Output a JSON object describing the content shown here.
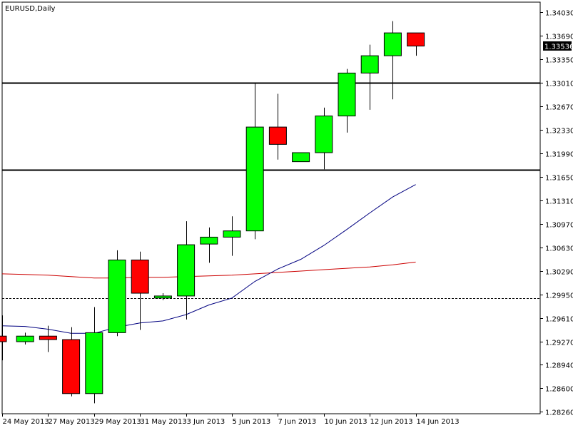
{
  "chart_data": {
    "type": "candlestick",
    "title": "EURUSD,Daily",
    "current_price": 1.33536,
    "current_price_label": "1.33536",
    "ylim": [
      1.2826,
      1.3403
    ],
    "y_ticks": [
      "1.34030",
      "1.33690",
      "1.33350",
      "1.33010",
      "1.32670",
      "1.32330",
      "1.31990",
      "1.31650",
      "1.31310",
      "1.30970",
      "1.30630",
      "1.30290",
      "1.29950",
      "1.29610",
      "1.29270",
      "1.28940",
      "1.28600",
      "1.28260"
    ],
    "x_labels": [
      {
        "index": 0,
        "label": "24 May 2013"
      },
      {
        "index": 2,
        "label": "27 May 2013"
      },
      {
        "index": 4,
        "label": "29 May 2013"
      },
      {
        "index": 6,
        "label": "31 May 2013"
      },
      {
        "index": 8,
        "label": "3 Jun 2013"
      },
      {
        "index": 10,
        "label": "5 Jun 2013"
      },
      {
        "index": 12,
        "label": "7 Jun 2013"
      },
      {
        "index": 14,
        "label": "10 Jun 2013"
      },
      {
        "index": 16,
        "label": "12 Jun 2013"
      },
      {
        "index": 18,
        "label": "14 Jun 2013"
      }
    ],
    "candles": [
      {
        "open": 1.2935,
        "high": 1.2965,
        "low": 1.29,
        "close": 1.2927
      },
      {
        "open": 1.2927,
        "high": 1.294,
        "low": 1.2923,
        "close": 1.2935
      },
      {
        "open": 1.2935,
        "high": 1.295,
        "low": 1.2912,
        "close": 1.293
      },
      {
        "open": 1.293,
        "high": 1.2948,
        "low": 1.2848,
        "close": 1.2852
      },
      {
        "open": 1.2852,
        "high": 1.2977,
        "low": 1.2838,
        "close": 1.294
      },
      {
        "open": 1.294,
        "high": 1.3059,
        "low": 1.2935,
        "close": 1.3045
      },
      {
        "open": 1.3045,
        "high": 1.3057,
        "low": 1.2944,
        "close": 1.2997
      },
      {
        "open": 1.299,
        "high": 1.2997,
        "low": 1.2987,
        "close": 1.2993
      },
      {
        "open": 1.2993,
        "high": 1.3101,
        "low": 1.2959,
        "close": 1.3067
      },
      {
        "open": 1.3068,
        "high": 1.3092,
        "low": 1.3041,
        "close": 1.3078
      },
      {
        "open": 1.3078,
        "high": 1.3108,
        "low": 1.3051,
        "close": 1.3087
      },
      {
        "open": 1.3087,
        "high": 1.3301,
        "low": 1.3075,
        "close": 1.3237
      },
      {
        "open": 1.3237,
        "high": 1.3285,
        "low": 1.319,
        "close": 1.3212
      },
      {
        "open": 1.3187,
        "high": 1.32,
        "low": 1.3187,
        "close": 1.32
      },
      {
        "open": 1.32,
        "high": 1.3265,
        "low": 1.3176,
        "close": 1.3253
      },
      {
        "open": 1.3253,
        "high": 1.3321,
        "low": 1.3229,
        "close": 1.3315
      },
      {
        "open": 1.3315,
        "high": 1.3356,
        "low": 1.3262,
        "close": 1.334
      },
      {
        "open": 1.334,
        "high": 1.339,
        "low": 1.3277,
        "close": 1.3373
      },
      {
        "open": 1.3373,
        "high": 1.3373,
        "low": 1.334,
        "close": 1.3354
      }
    ],
    "horizontal_lines": [
      1.3301,
      1.3175
    ],
    "dashed_line": 1.299,
    "ma_fast": [
      1.295,
      1.2949,
      1.2945,
      1.2939,
      1.2939,
      1.2948,
      1.2954,
      1.2957,
      1.2966,
      1.298,
      1.299,
      1.3014,
      1.3032,
      1.3046,
      1.3066,
      1.3089,
      1.3113,
      1.3136,
      1.3154
    ],
    "ma_slow": [
      1.3025,
      1.3024,
      1.3023,
      1.3021,
      1.3019,
      1.3019,
      1.302,
      1.302,
      1.3021,
      1.3022,
      1.3023,
      1.3025,
      1.3027,
      1.3029,
      1.3031,
      1.3033,
      1.3035,
      1.3038,
      1.3042
    ],
    "colors": {
      "bull": "#00ff00",
      "bear": "#ff0000",
      "candle_outline": "#000000",
      "ma_fast": "#000080",
      "ma_slow": "#cc0000",
      "hline": "#000000",
      "price_tag_bg": "#000000"
    }
  }
}
